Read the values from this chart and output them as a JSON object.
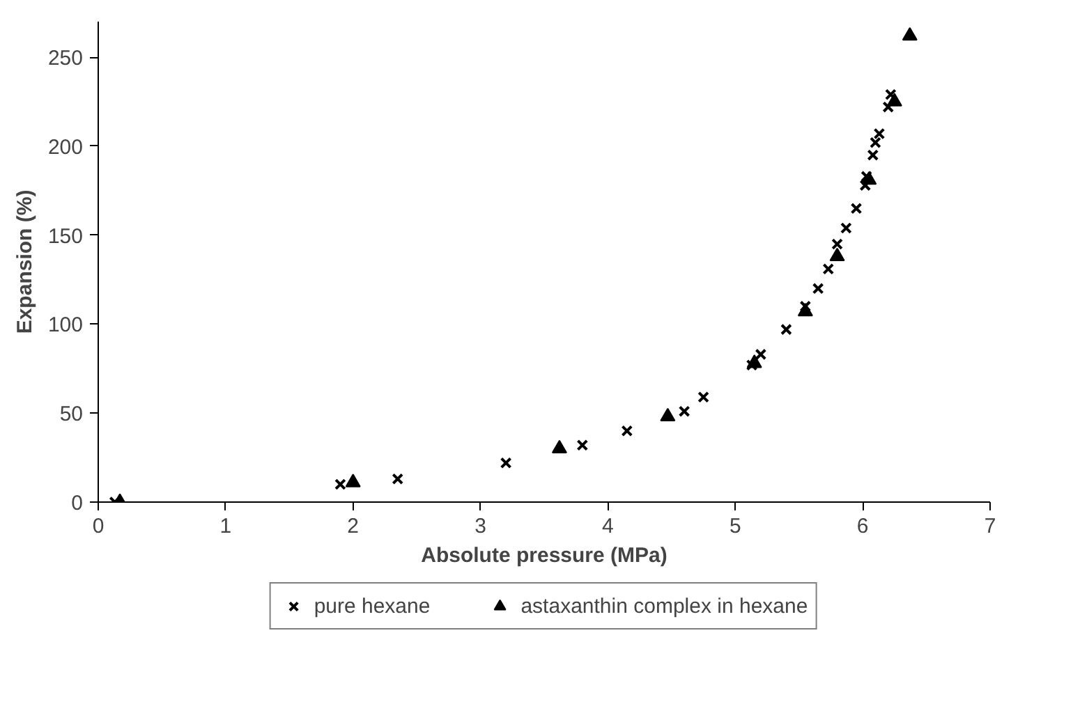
{
  "chart_data": {
    "type": "scatter",
    "xlabel": "Absolute pressure (MPa)",
    "ylabel": "Expansion (%)",
    "xlim": [
      0,
      7
    ],
    "xticks": [
      0,
      1,
      2,
      3,
      4,
      5,
      6,
      7
    ],
    "ylim": [
      0,
      270
    ],
    "yticks": [
      0,
      50,
      100,
      150,
      200,
      250
    ],
    "grid": false,
    "legend": "bottom",
    "series": [
      {
        "name": "pure hexane",
        "color": "#000000",
        "marker": "cross",
        "x": [
          0.13,
          1.9,
          2.35,
          3.2,
          3.8,
          4.15,
          4.6,
          4.75,
          5.13,
          5.2,
          5.4,
          5.55,
          5.65,
          5.73,
          5.8,
          5.87,
          5.95,
          6.02,
          6.03,
          6.08,
          6.1,
          6.13,
          6.2,
          6.22
        ],
        "values": [
          0,
          10,
          13,
          22,
          32,
          40,
          51,
          59,
          77,
          83,
          97,
          110,
          120,
          131,
          145,
          154,
          165,
          178,
          183,
          195,
          202,
          207,
          222,
          229
        ]
      },
      {
        "name": "astaxanthin complex in hexane",
        "color": "#000000",
        "marker": "triangle",
        "x": [
          0.17,
          2.0,
          3.62,
          4.47,
          5.15,
          5.55,
          5.8,
          6.05,
          6.25,
          6.37
        ],
        "values": [
          0,
          11,
          30,
          48,
          78,
          107,
          138,
          181,
          225,
          262
        ]
      }
    ]
  }
}
